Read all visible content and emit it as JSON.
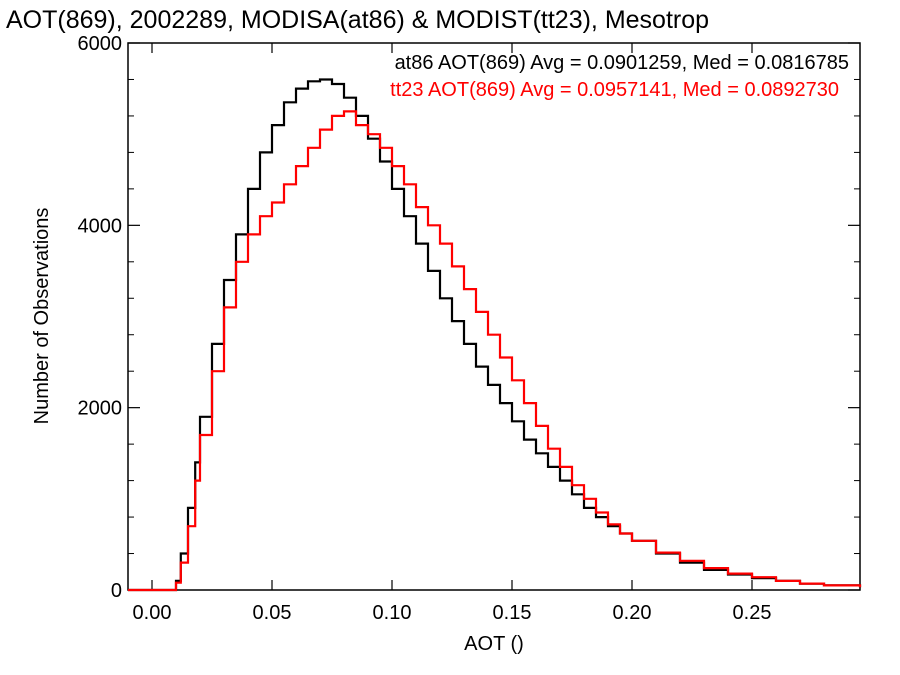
{
  "chart_data": {
    "type": "line",
    "title": "AOT(869), 2002289, MODISA(at86) & MODIST(tt23), Mesotrop",
    "xlabel": "AOT ()",
    "ylabel": "Number of Observations",
    "xlim": [
      -0.01,
      0.295
    ],
    "ylim": [
      0,
      6000
    ],
    "x_ticks": [
      0.0,
      0.05,
      0.1,
      0.15,
      0.2,
      0.25
    ],
    "x_tick_labels": [
      "0.00",
      "0.05",
      "0.10",
      "0.15",
      "0.20",
      "0.25"
    ],
    "y_ticks": [
      0,
      2000,
      4000,
      6000
    ],
    "y_tick_labels": [
      "0",
      "2000",
      "4000",
      "6000"
    ],
    "step_style": "histogram-step",
    "legend_placement": "top-right",
    "series": [
      {
        "name": "at86",
        "color": "#000000",
        "legend_text": "at86 AOT(869) Avg = 0.0901259, Med = 0.0816785",
        "x": [
          -0.01,
          0.0,
          0.005,
          0.008,
          0.01,
          0.012,
          0.015,
          0.018,
          0.02,
          0.025,
          0.03,
          0.035,
          0.04,
          0.045,
          0.05,
          0.055,
          0.06,
          0.065,
          0.07,
          0.075,
          0.08,
          0.085,
          0.09,
          0.095,
          0.1,
          0.105,
          0.11,
          0.115,
          0.12,
          0.125,
          0.13,
          0.135,
          0.14,
          0.145,
          0.15,
          0.155,
          0.16,
          0.165,
          0.17,
          0.175,
          0.18,
          0.185,
          0.19,
          0.195,
          0.2,
          0.21,
          0.22,
          0.23,
          0.24,
          0.25,
          0.26,
          0.27,
          0.28,
          0.295
        ],
        "y": [
          0,
          0,
          0,
          0,
          100,
          400,
          900,
          1400,
          1900,
          2700,
          3400,
          3900,
          4400,
          4800,
          5100,
          5350,
          5500,
          5580,
          5600,
          5550,
          5400,
          5200,
          4950,
          4700,
          4400,
          4100,
          3800,
          3500,
          3200,
          2950,
          2700,
          2450,
          2250,
          2050,
          1850,
          1650,
          1500,
          1350,
          1200,
          1050,
          900,
          800,
          700,
          620,
          540,
          400,
          300,
          220,
          170,
          130,
          100,
          70,
          50,
          30
        ]
      },
      {
        "name": "tt23",
        "color": "#ff0000",
        "legend_text": "tt23 AOT(869) Avg = 0.0957141, Med = 0.0892730",
        "x": [
          -0.01,
          0.0,
          0.005,
          0.008,
          0.01,
          0.012,
          0.015,
          0.018,
          0.02,
          0.025,
          0.03,
          0.035,
          0.04,
          0.045,
          0.05,
          0.055,
          0.06,
          0.065,
          0.07,
          0.075,
          0.08,
          0.085,
          0.09,
          0.095,
          0.1,
          0.105,
          0.11,
          0.115,
          0.12,
          0.125,
          0.13,
          0.135,
          0.14,
          0.145,
          0.15,
          0.155,
          0.16,
          0.165,
          0.17,
          0.175,
          0.18,
          0.185,
          0.19,
          0.195,
          0.2,
          0.21,
          0.22,
          0.23,
          0.24,
          0.25,
          0.26,
          0.27,
          0.28,
          0.295
        ],
        "y": [
          0,
          0,
          0,
          0,
          80,
          300,
          700,
          1200,
          1700,
          2400,
          3100,
          3600,
          3900,
          4100,
          4250,
          4450,
          4650,
          4850,
          5050,
          5200,
          5250,
          5100,
          5000,
          4850,
          4650,
          4450,
          4200,
          4000,
          3800,
          3550,
          3300,
          3050,
          2800,
          2550,
          2300,
          2050,
          1800,
          1550,
          1350,
          1150,
          1000,
          850,
          720,
          620,
          540,
          410,
          320,
          240,
          180,
          140,
          100,
          70,
          50,
          30
        ]
      }
    ]
  }
}
